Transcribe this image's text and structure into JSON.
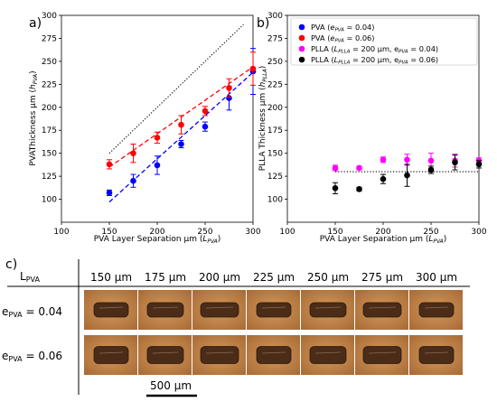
{
  "panels": {
    "a": "a)",
    "b": "b)",
    "c": "c)"
  },
  "chart_data": [
    {
      "type": "scatter",
      "panel": "a)",
      "xlabel_main": "PVA Layer Separation μm (",
      "xlabel_sym": "L",
      "xlabel_sub": "PVA",
      "ylabel_main": "PVAThickness μm (",
      "ylabel_sym": "h",
      "ylabel_sub": "PVA",
      "xlim": [
        100,
        300
      ],
      "ylim": [
        75,
        300
      ],
      "xticks": [
        "100",
        "150",
        "200",
        "250",
        "300"
      ],
      "yticks": [
        "100",
        "125",
        "150",
        "175",
        "200",
        "225",
        "250",
        "275",
        "300"
      ],
      "series": [
        {
          "color": "#0000ff",
          "x": [
            150,
            175,
            200,
            225,
            250,
            275,
            300
          ],
          "y": [
            107,
            120,
            137,
            160,
            179,
            210,
            239
          ],
          "err": [
            3,
            7,
            10,
            4,
            5,
            13,
            25
          ],
          "fit": [
            [
              150,
              97
            ],
            [
              300,
              238
            ]
          ]
        },
        {
          "color": "#ff0000",
          "x": [
            150,
            175,
            200,
            225,
            250,
            275,
            300
          ],
          "y": [
            138,
            150,
            167,
            181,
            196,
            221,
            242
          ],
          "err": [
            5,
            10,
            6,
            10,
            5,
            10,
            18
          ],
          "fit": [
            [
              150,
              135
            ],
            [
              300,
              244
            ]
          ]
        }
      ],
      "reference_line": [
        [
          150,
          150
        ],
        [
          290,
          290
        ]
      ]
    },
    {
      "type": "scatter",
      "panel": "b)",
      "xlabel_main": "PVA Layer Separation μm (",
      "xlabel_sym": "L",
      "xlabel_sub": "PVA",
      "ylabel_main": "PLLA Thickness μm (",
      "ylabel_sym": "h",
      "ylabel_sub": "PLLA",
      "xlim": [
        100,
        300
      ],
      "ylim": [
        75,
        300
      ],
      "xticks": [
        "100",
        "150",
        "200",
        "250",
        "300"
      ],
      "yticks": [
        "100",
        "125",
        "150",
        "175",
        "200",
        "225",
        "250",
        "275",
        "300"
      ],
      "series": [
        {
          "color": "#ff00ff",
          "x": [
            150,
            175,
            200,
            225,
            250,
            275,
            300
          ],
          "y": [
            134,
            134,
            143,
            143,
            142,
            142,
            142
          ],
          "err": [
            3,
            2,
            3,
            6,
            8,
            7,
            3
          ]
        },
        {
          "color": "#000000",
          "x": [
            150,
            175,
            200,
            225,
            250,
            275,
            300
          ],
          "y": [
            112,
            111,
            122,
            126,
            132,
            140,
            138
          ],
          "err": [
            6,
            2,
            5,
            12,
            4,
            8,
            4
          ]
        }
      ],
      "reference_line": [
        [
          150,
          130
        ],
        [
          300,
          130
        ]
      ]
    }
  ],
  "legend": [
    {
      "color": "#0000ff",
      "label": "PVA (",
      "sym": "e",
      "sub": "PVA",
      "tail": " = 0.04)"
    },
    {
      "color": "#ff0000",
      "label": "PVA (",
      "sym": "e",
      "sub": "PVA",
      "tail": " = 0.06)"
    },
    {
      "color": "#ff00ff",
      "label": "PLLA (",
      "sym": "L",
      "sub": "PLLA",
      "tail": " = 200 μm, e",
      "sub2": "PVA",
      "tail2": " = 0.04)"
    },
    {
      "color": "#000000",
      "label": "PLLA (",
      "sym": "L",
      "sub": "PLLA",
      "tail": " = 200 μm, e",
      "sub2": "PVA",
      "tail2": " = 0.06)"
    }
  ],
  "matrix": {
    "corner_main": "L",
    "corner_sub": "PVA",
    "columns": [
      "150 μm",
      "175 μm",
      "200 μm",
      "225 μm",
      "250 μm",
      "275 μm",
      "300 μm"
    ],
    "rows": [
      {
        "main": "e",
        "sub": "PVA",
        "value": " = 0.04"
      },
      {
        "main": "e",
        "sub": "PVA",
        "value": " = 0.06"
      }
    ],
    "scale_bar": "500 μm"
  }
}
